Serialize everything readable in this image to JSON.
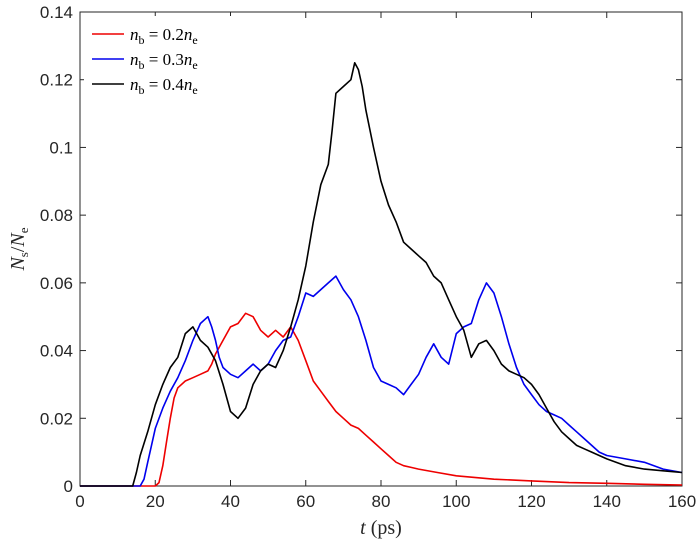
{
  "chart_data": {
    "type": "line",
    "title": "",
    "xlabel": "t (ps)",
    "ylabel": "Ns/Ne",
    "xlim": [
      0,
      160
    ],
    "ylim": [
      0,
      0.14
    ],
    "grid": false,
    "legend_position": "top-left",
    "x_ticks": [
      0,
      20,
      40,
      60,
      80,
      100,
      120,
      140,
      160
    ],
    "x_tick_labels": [
      "0",
      "20",
      "40",
      "60",
      "80",
      "100",
      "120",
      "140",
      "160"
    ],
    "y_ticks": [
      0,
      0.02,
      0.04,
      0.06,
      0.08,
      0.1,
      0.12,
      0.14
    ],
    "y_tick_labels": [
      "0",
      "0.02",
      "0.04",
      "0.06",
      "0.08",
      "0.1",
      "0.12",
      "0.14"
    ],
    "series": [
      {
        "name": "nb = 0.2ne",
        "color": "#ee0000",
        "points": [
          [
            0,
            0
          ],
          [
            20,
            0
          ],
          [
            21,
            0.001
          ],
          [
            22,
            0.006
          ],
          [
            23,
            0.013
          ],
          [
            24,
            0.02
          ],
          [
            25,
            0.026
          ],
          [
            26,
            0.029
          ],
          [
            28,
            0.031
          ],
          [
            30,
            0.032
          ],
          [
            32,
            0.033
          ],
          [
            34,
            0.034
          ],
          [
            35,
            0.036
          ],
          [
            36,
            0.039
          ],
          [
            38,
            0.043
          ],
          [
            40,
            0.047
          ],
          [
            42,
            0.048
          ],
          [
            44,
            0.051
          ],
          [
            46,
            0.05
          ],
          [
            48,
            0.046
          ],
          [
            50,
            0.044
          ],
          [
            52,
            0.046
          ],
          [
            54,
            0.044
          ],
          [
            56,
            0.047
          ],
          [
            58,
            0.043
          ],
          [
            60,
            0.037
          ],
          [
            62,
            0.031
          ],
          [
            64,
            0.028
          ],
          [
            66,
            0.025
          ],
          [
            68,
            0.022
          ],
          [
            70,
            0.02
          ],
          [
            72,
            0.018
          ],
          [
            74,
            0.017
          ],
          [
            76,
            0.015
          ],
          [
            78,
            0.013
          ],
          [
            80,
            0.011
          ],
          [
            82,
            0.009
          ],
          [
            84,
            0.007
          ],
          [
            86,
            0.006
          ],
          [
            88,
            0.0055
          ],
          [
            90,
            0.005
          ],
          [
            95,
            0.004
          ],
          [
            100,
            0.003
          ],
          [
            110,
            0.002
          ],
          [
            120,
            0.0015
          ],
          [
            130,
            0.001
          ],
          [
            140,
            0.0008
          ],
          [
            150,
            0.0005
          ],
          [
            160,
            0.0003
          ]
        ]
      },
      {
        "name": "nb = 0.3ne",
        "color": "#0000ee",
        "points": [
          [
            0,
            0
          ],
          [
            16,
            0
          ],
          [
            17,
            0.002
          ],
          [
            18,
            0.007
          ],
          [
            19,
            0.012
          ],
          [
            20,
            0.017
          ],
          [
            22,
            0.023
          ],
          [
            24,
            0.028
          ],
          [
            26,
            0.032
          ],
          [
            28,
            0.037
          ],
          [
            30,
            0.043
          ],
          [
            32,
            0.048
          ],
          [
            34,
            0.05
          ],
          [
            35,
            0.047
          ],
          [
            36,
            0.043
          ],
          [
            37,
            0.038
          ],
          [
            38,
            0.035
          ],
          [
            40,
            0.033
          ],
          [
            42,
            0.032
          ],
          [
            44,
            0.034
          ],
          [
            46,
            0.036
          ],
          [
            48,
            0.034
          ],
          [
            50,
            0.036
          ],
          [
            52,
            0.04
          ],
          [
            54,
            0.043
          ],
          [
            56,
            0.044
          ],
          [
            58,
            0.05
          ],
          [
            60,
            0.057
          ],
          [
            62,
            0.056
          ],
          [
            64,
            0.058
          ],
          [
            66,
            0.06
          ],
          [
            68,
            0.062
          ],
          [
            70,
            0.058
          ],
          [
            72,
            0.055
          ],
          [
            74,
            0.05
          ],
          [
            76,
            0.043
          ],
          [
            78,
            0.035
          ],
          [
            80,
            0.031
          ],
          [
            82,
            0.03
          ],
          [
            84,
            0.029
          ],
          [
            86,
            0.027
          ],
          [
            88,
            0.03
          ],
          [
            90,
            0.033
          ],
          [
            92,
            0.038
          ],
          [
            94,
            0.042
          ],
          [
            96,
            0.038
          ],
          [
            98,
            0.036
          ],
          [
            100,
            0.045
          ],
          [
            102,
            0.047
          ],
          [
            104,
            0.048
          ],
          [
            106,
            0.055
          ],
          [
            108,
            0.06
          ],
          [
            110,
            0.057
          ],
          [
            112,
            0.05
          ],
          [
            114,
            0.042
          ],
          [
            116,
            0.035
          ],
          [
            118,
            0.03
          ],
          [
            120,
            0.027
          ],
          [
            122,
            0.024
          ],
          [
            124,
            0.022
          ],
          [
            126,
            0.021
          ],
          [
            128,
            0.02
          ],
          [
            130,
            0.018
          ],
          [
            132,
            0.016
          ],
          [
            134,
            0.014
          ],
          [
            136,
            0.012
          ],
          [
            138,
            0.01
          ],
          [
            140,
            0.009
          ],
          [
            145,
            0.008
          ],
          [
            150,
            0.007
          ],
          [
            155,
            0.005
          ],
          [
            160,
            0.004
          ]
        ]
      },
      {
        "name": "nb = 0.4ne",
        "color": "#000000",
        "points": [
          [
            0,
            0
          ],
          [
            14,
            0
          ],
          [
            15,
            0.004
          ],
          [
            16,
            0.009
          ],
          [
            18,
            0.016
          ],
          [
            20,
            0.024
          ],
          [
            22,
            0.03
          ],
          [
            24,
            0.035
          ],
          [
            26,
            0.038
          ],
          [
            28,
            0.045
          ],
          [
            30,
            0.047
          ],
          [
            32,
            0.043
          ],
          [
            34,
            0.041
          ],
          [
            36,
            0.037
          ],
          [
            38,
            0.03
          ],
          [
            40,
            0.022
          ],
          [
            42,
            0.02
          ],
          [
            44,
            0.023
          ],
          [
            46,
            0.03
          ],
          [
            48,
            0.034
          ],
          [
            50,
            0.036
          ],
          [
            52,
            0.035
          ],
          [
            54,
            0.04
          ],
          [
            56,
            0.047
          ],
          [
            58,
            0.055
          ],
          [
            60,
            0.065
          ],
          [
            62,
            0.078
          ],
          [
            64,
            0.089
          ],
          [
            66,
            0.095
          ],
          [
            67,
            0.105
          ],
          [
            68,
            0.116
          ],
          [
            70,
            0.118
          ],
          [
            72,
            0.12
          ],
          [
            73,
            0.125
          ],
          [
            74,
            0.123
          ],
          [
            75,
            0.118
          ],
          [
            76,
            0.111
          ],
          [
            78,
            0.1
          ],
          [
            80,
            0.09
          ],
          [
            82,
            0.083
          ],
          [
            84,
            0.078
          ],
          [
            86,
            0.072
          ],
          [
            88,
            0.07
          ],
          [
            90,
            0.068
          ],
          [
            92,
            0.066
          ],
          [
            94,
            0.062
          ],
          [
            96,
            0.06
          ],
          [
            98,
            0.055
          ],
          [
            100,
            0.05
          ],
          [
            102,
            0.046
          ],
          [
            104,
            0.038
          ],
          [
            106,
            0.042
          ],
          [
            108,
            0.043
          ],
          [
            110,
            0.04
          ],
          [
            112,
            0.036
          ],
          [
            114,
            0.034
          ],
          [
            116,
            0.033
          ],
          [
            118,
            0.032
          ],
          [
            120,
            0.03
          ],
          [
            122,
            0.027
          ],
          [
            124,
            0.023
          ],
          [
            126,
            0.019
          ],
          [
            128,
            0.016
          ],
          [
            130,
            0.014
          ],
          [
            132,
            0.012
          ],
          [
            134,
            0.011
          ],
          [
            136,
            0.01
          ],
          [
            138,
            0.009
          ],
          [
            140,
            0.008
          ],
          [
            145,
            0.006
          ],
          [
            150,
            0.005
          ],
          [
            155,
            0.0045
          ],
          [
            160,
            0.004
          ]
        ]
      }
    ]
  }
}
